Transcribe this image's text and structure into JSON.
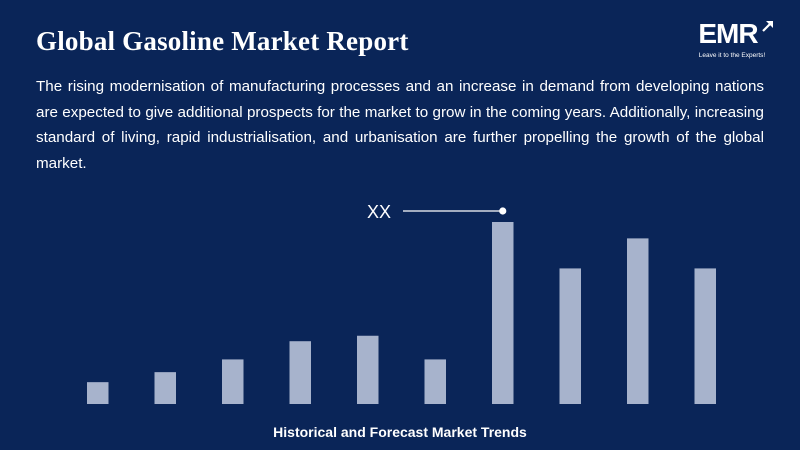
{
  "header": {
    "title": "Global Gasoline Market Report",
    "description": "The rising modernisation of manufacturing processes and an increase in demand from developing nations are expected to give additional prospects for the market to grow in the coming years. Additionally, increasing standard of living, rapid industrialisation, and urbanisation are further propelling the growth of the global market."
  },
  "logo": {
    "text": "EMR",
    "tagline": "Leave it to the Experts!",
    "icon": "arrow-up-right-icon"
  },
  "colors": {
    "background": "#0a2558",
    "bar": "#a7b3cc",
    "text": "#ffffff"
  },
  "chart_data": {
    "type": "bar",
    "values": [
      12,
      17.5,
      24.5,
      34.5,
      37.5,
      24.5,
      100,
      74.5,
      91,
      74.5
    ],
    "ylim": [
      0,
      100
    ],
    "annotation": {
      "label": "XX",
      "target_index": 6
    },
    "grid": false,
    "caption": "Historical and Forecast Market Trends"
  }
}
